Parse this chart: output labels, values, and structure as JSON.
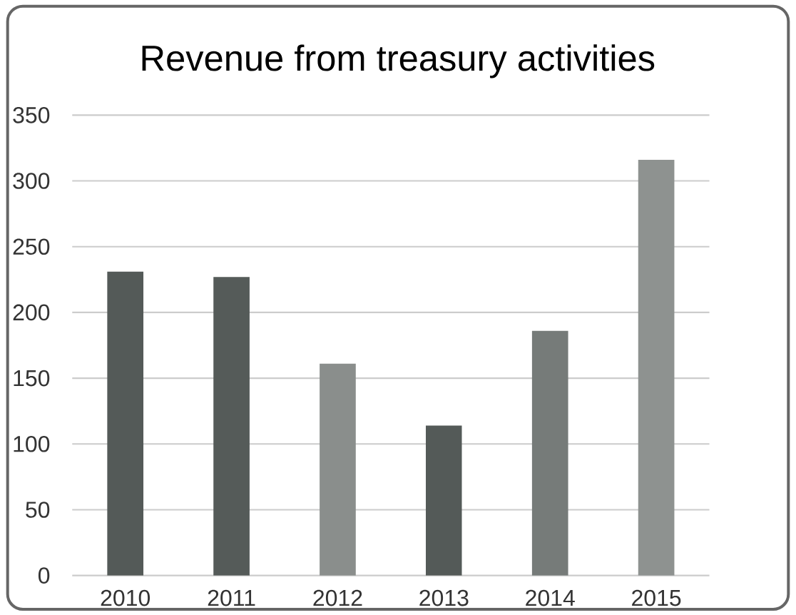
{
  "chart_data": {
    "type": "bar",
    "title": "Revenue from treasury activities",
    "categories": [
      "2010",
      "2011",
      "2012",
      "2013",
      "2014",
      "2015"
    ],
    "values": [
      231,
      227,
      161,
      114,
      186,
      316
    ],
    "colors": [
      "#545a58",
      "#555b59",
      "#8a8e8c",
      "#545a58",
      "#767b79",
      "#8e9290"
    ],
    "ylim": [
      0,
      350
    ],
    "yticks": [
      0,
      50,
      100,
      150,
      200,
      250,
      300,
      350
    ],
    "grid": "y"
  }
}
